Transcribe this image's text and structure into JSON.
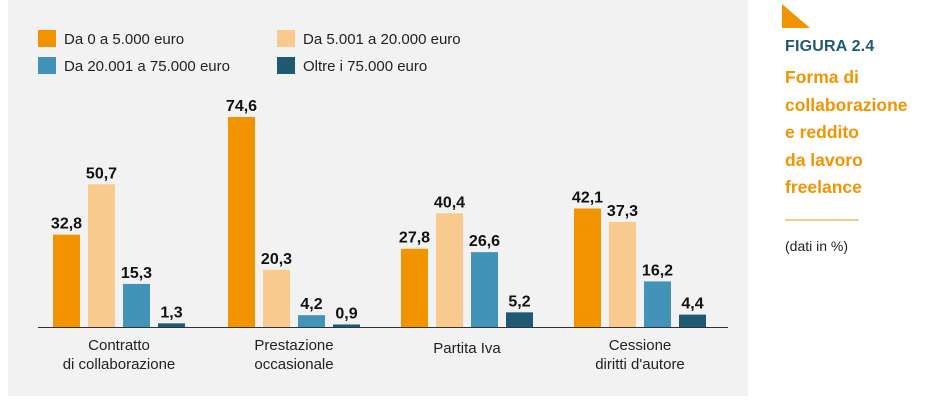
{
  "figure": {
    "label": "FIGURA 2.4",
    "title_lines": [
      "Forma di",
      "collaborazione",
      "e reddito",
      "da lavoro",
      "freelance"
    ],
    "note": "(dati in %)",
    "accent_color": "#f29400",
    "label_color": "#1f5a73"
  },
  "chart_data": {
    "type": "bar",
    "categories": [
      [
        "Contratto",
        "di collaborazione"
      ],
      [
        "Prestazione",
        "occasionale"
      ],
      [
        "Partita Iva"
      ],
      [
        "Cessione",
        "diritti d'autore"
      ]
    ],
    "series": [
      {
        "name": "Da 0 a 5.000 euro",
        "color": "#f29400",
        "values": [
          32.8,
          74.6,
          27.8,
          42.1
        ]
      },
      {
        "name": "Da 5.001 a 20.000 euro",
        "color": "#f8ca8e",
        "values": [
          50.7,
          20.3,
          40.4,
          37.3
        ]
      },
      {
        "name": "Da 20.001 a 75.000 euro",
        "color": "#4293b7",
        "values": [
          15.3,
          4.2,
          26.6,
          16.2
        ]
      },
      {
        "name": "Oltre i 75.000 euro",
        "color": "#1f5a73",
        "values": [
          1.3,
          0.9,
          5.2,
          4.4
        ]
      }
    ],
    "value_labels": [
      [
        "32,8",
        "74,6",
        "27,8",
        "42,1"
      ],
      [
        "50,7",
        "20,3",
        "40,4",
        "37,3"
      ],
      [
        "15,3",
        "4,2",
        "26,6",
        "16,2"
      ],
      [
        "1,3",
        "0,9",
        "5,2",
        "4,4"
      ]
    ],
    "ylim": [
      0,
      80
    ],
    "legend_position": "top-left",
    "grid": false
  }
}
